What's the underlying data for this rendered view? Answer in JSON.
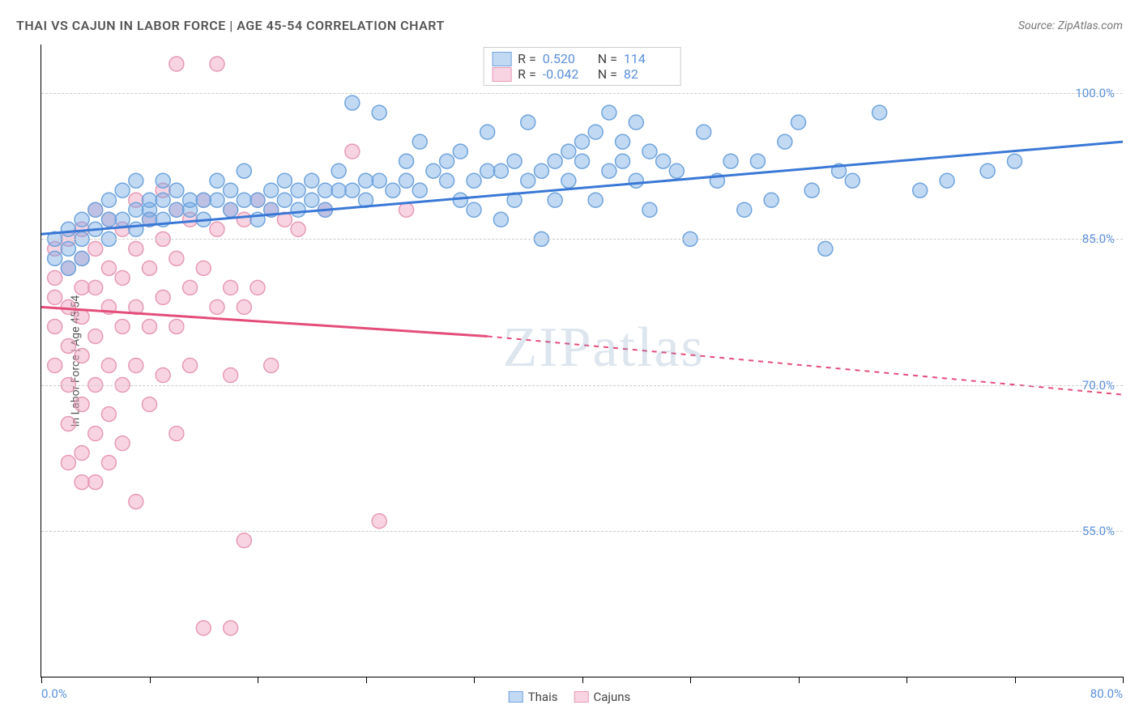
{
  "header": {
    "title": "THAI VS CAJUN IN LABOR FORCE | AGE 45-54 CORRELATION CHART",
    "source": "Source: ZipAtlas.com"
  },
  "chart": {
    "type": "scatter",
    "ylabel": "In Labor Force | Age 45-54",
    "watermark": "ZIPatlas",
    "xlim": [
      0,
      80
    ],
    "ylim": [
      40,
      105
    ],
    "yticks": [
      {
        "v": 100,
        "label": "100.0%"
      },
      {
        "v": 85,
        "label": "85.0%"
      },
      {
        "v": 70,
        "label": "70.0%"
      },
      {
        "v": 55,
        "label": "55.0%"
      }
    ],
    "xticks_minor": [
      0,
      8,
      16,
      24,
      32,
      40,
      48,
      56,
      64,
      72,
      80
    ],
    "xticks_label": [
      {
        "v": 0,
        "label": "0.0%",
        "cls": "left"
      },
      {
        "v": 80,
        "label": "80.0%",
        "cls": "right"
      }
    ],
    "grid_color": "#cccccc",
    "background": "#ffffff",
    "series": [
      {
        "name": "Thais",
        "color_fill": "rgba(120,170,230,0.45)",
        "color_stroke": "#6fa4db",
        "line_color": "#3a78d6",
        "R": "0.520",
        "N": "114",
        "trend": {
          "x1": 0,
          "y1": 85.5,
          "x2": 80,
          "y2": 95,
          "dash_after_x": 80
        },
        "points": [
          [
            1,
            83
          ],
          [
            1,
            85
          ],
          [
            2,
            84
          ],
          [
            2,
            82
          ],
          [
            2,
            86
          ],
          [
            3,
            85
          ],
          [
            3,
            87
          ],
          [
            3,
            83
          ],
          [
            4,
            86
          ],
          [
            4,
            88
          ],
          [
            5,
            87
          ],
          [
            5,
            85
          ],
          [
            5,
            89
          ],
          [
            6,
            87
          ],
          [
            6,
            90
          ],
          [
            7,
            88
          ],
          [
            7,
            86
          ],
          [
            7,
            91
          ],
          [
            8,
            88
          ],
          [
            8,
            87
          ],
          [
            8,
            89
          ],
          [
            9,
            89
          ],
          [
            9,
            87
          ],
          [
            9,
            91
          ],
          [
            10,
            88
          ],
          [
            10,
            90
          ],
          [
            11,
            88
          ],
          [
            11,
            89
          ],
          [
            12,
            89
          ],
          [
            12,
            87
          ],
          [
            13,
            89
          ],
          [
            13,
            91
          ],
          [
            14,
            88
          ],
          [
            14,
            90
          ],
          [
            15,
            89
          ],
          [
            15,
            92
          ],
          [
            16,
            89
          ],
          [
            16,
            87
          ],
          [
            17,
            90
          ],
          [
            17,
            88
          ],
          [
            18,
            89
          ],
          [
            18,
            91
          ],
          [
            19,
            90
          ],
          [
            19,
            88
          ],
          [
            20,
            89
          ],
          [
            20,
            91
          ],
          [
            21,
            88
          ],
          [
            21,
            90
          ],
          [
            22,
            90
          ],
          [
            22,
            92
          ],
          [
            23,
            90
          ],
          [
            23,
            99
          ],
          [
            24,
            89
          ],
          [
            24,
            91
          ],
          [
            25,
            91
          ],
          [
            25,
            98
          ],
          [
            26,
            90
          ],
          [
            27,
            91
          ],
          [
            27,
            93
          ],
          [
            28,
            90
          ],
          [
            28,
            95
          ],
          [
            29,
            92
          ],
          [
            30,
            91
          ],
          [
            30,
            93
          ],
          [
            31,
            89
          ],
          [
            31,
            94
          ],
          [
            32,
            91
          ],
          [
            32,
            88
          ],
          [
            33,
            92
          ],
          [
            33,
            96
          ],
          [
            34,
            92
          ],
          [
            34,
            87
          ],
          [
            35,
            93
          ],
          [
            35,
            89
          ],
          [
            36,
            91
          ],
          [
            36,
            97
          ],
          [
            37,
            92
          ],
          [
            37,
            85
          ],
          [
            38,
            93
          ],
          [
            38,
            89
          ],
          [
            39,
            94
          ],
          [
            39,
            91
          ],
          [
            40,
            93
          ],
          [
            40,
            95
          ],
          [
            41,
            89
          ],
          [
            41,
            96
          ],
          [
            42,
            92
          ],
          [
            42,
            98
          ],
          [
            43,
            93
          ],
          [
            43,
            95
          ],
          [
            44,
            91
          ],
          [
            44,
            97
          ],
          [
            45,
            94
          ],
          [
            45,
            88
          ],
          [
            46,
            93
          ],
          [
            47,
            92
          ],
          [
            48,
            85
          ],
          [
            49,
            96
          ],
          [
            50,
            91
          ],
          [
            51,
            93
          ],
          [
            52,
            88
          ],
          [
            53,
            93
          ],
          [
            54,
            89
          ],
          [
            55,
            95
          ],
          [
            56,
            97
          ],
          [
            57,
            90
          ],
          [
            58,
            84
          ],
          [
            59,
            92
          ],
          [
            60,
            91
          ],
          [
            62,
            98
          ],
          [
            65,
            90
          ],
          [
            67,
            91
          ],
          [
            70,
            92
          ],
          [
            72,
            93
          ]
        ]
      },
      {
        "name": "Cajuns",
        "color_fill": "rgba(240,160,190,0.45)",
        "color_stroke": "#e69ab5",
        "line_color": "#e44d7a",
        "R": "-0.042",
        "N": "82",
        "trend": {
          "x1": 0,
          "y1": 78,
          "x2": 33,
          "y2": 75,
          "dash_after_x": 33,
          "dash_x2": 80,
          "dash_y2": 69
        },
        "points": [
          [
            1,
            84
          ],
          [
            1,
            81
          ],
          [
            1,
            79
          ],
          [
            1,
            76
          ],
          [
            1,
            72
          ],
          [
            2,
            85
          ],
          [
            2,
            82
          ],
          [
            2,
            78
          ],
          [
            2,
            74
          ],
          [
            2,
            70
          ],
          [
            2,
            66
          ],
          [
            2,
            62
          ],
          [
            3,
            86
          ],
          [
            3,
            83
          ],
          [
            3,
            80
          ],
          [
            3,
            77
          ],
          [
            3,
            73
          ],
          [
            3,
            68
          ],
          [
            3,
            63
          ],
          [
            3,
            60
          ],
          [
            4,
            88
          ],
          [
            4,
            84
          ],
          [
            4,
            80
          ],
          [
            4,
            75
          ],
          [
            4,
            70
          ],
          [
            4,
            65
          ],
          [
            4,
            60
          ],
          [
            5,
            87
          ],
          [
            5,
            82
          ],
          [
            5,
            78
          ],
          [
            5,
            72
          ],
          [
            5,
            67
          ],
          [
            5,
            62
          ],
          [
            6,
            86
          ],
          [
            6,
            81
          ],
          [
            6,
            76
          ],
          [
            6,
            70
          ],
          [
            6,
            64
          ],
          [
            7,
            89
          ],
          [
            7,
            84
          ],
          [
            7,
            78
          ],
          [
            7,
            72
          ],
          [
            7,
            58
          ],
          [
            8,
            87
          ],
          [
            8,
            82
          ],
          [
            8,
            76
          ],
          [
            8,
            68
          ],
          [
            9,
            90
          ],
          [
            9,
            85
          ],
          [
            9,
            79
          ],
          [
            9,
            71
          ],
          [
            10,
            103
          ],
          [
            10,
            88
          ],
          [
            10,
            83
          ],
          [
            10,
            76
          ],
          [
            10,
            65
          ],
          [
            11,
            87
          ],
          [
            11,
            80
          ],
          [
            11,
            72
          ],
          [
            12,
            89
          ],
          [
            12,
            82
          ],
          [
            12,
            45
          ],
          [
            13,
            103
          ],
          [
            13,
            86
          ],
          [
            13,
            78
          ],
          [
            14,
            88
          ],
          [
            14,
            80
          ],
          [
            14,
            71
          ],
          [
            14,
            45
          ],
          [
            15,
            87
          ],
          [
            15,
            78
          ],
          [
            15,
            54
          ],
          [
            16,
            89
          ],
          [
            16,
            80
          ],
          [
            17,
            88
          ],
          [
            17,
            72
          ],
          [
            18,
            87
          ],
          [
            19,
            86
          ],
          [
            21,
            88
          ],
          [
            23,
            94
          ],
          [
            25,
            56
          ],
          [
            27,
            88
          ]
        ]
      }
    ],
    "bottom_legend": [
      {
        "swatch_fill": "rgba(120,170,230,0.45)",
        "swatch_stroke": "#6fa4db",
        "label": "Thais"
      },
      {
        "swatch_fill": "rgba(240,160,190,0.45)",
        "swatch_stroke": "#e69ab5",
        "label": "Cajuns"
      }
    ]
  }
}
